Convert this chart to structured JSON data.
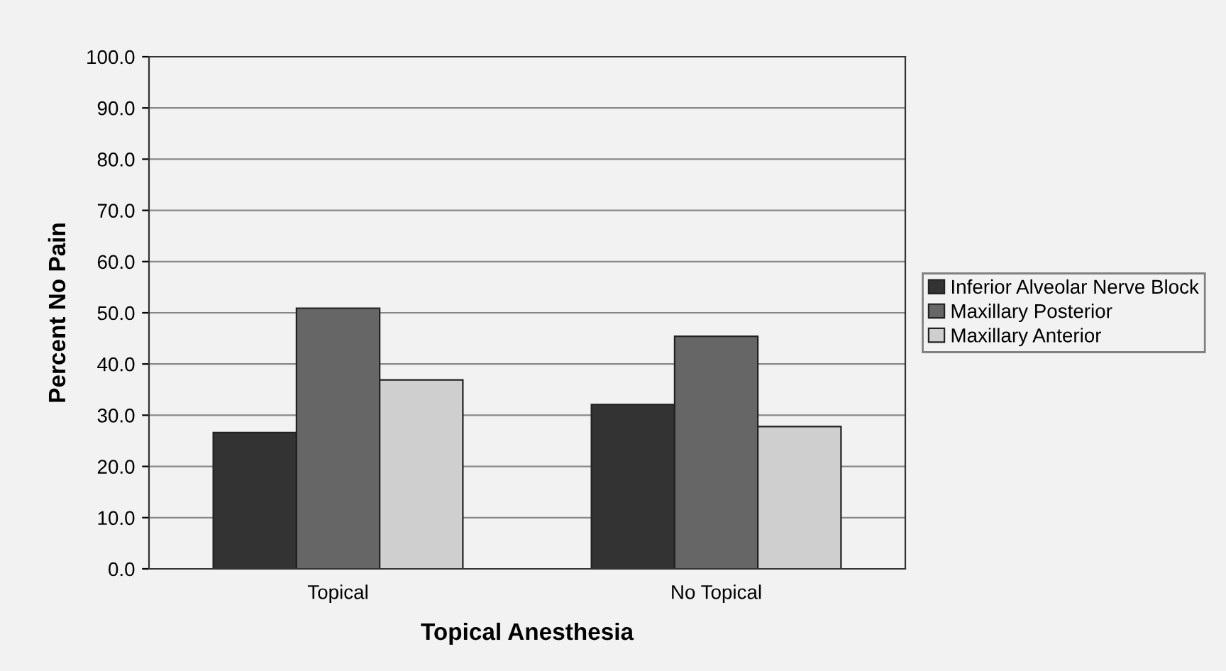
{
  "chart_data": {
    "type": "bar",
    "xlabel": "Topical Anesthesia",
    "ylabel": "Percent No Pain",
    "categories": [
      "Topical",
      "No Topical"
    ],
    "series": [
      {
        "name": "Inferior Alveolar Nerve Block",
        "color": "#333333",
        "values": [
          26.6,
          32.1
        ]
      },
      {
        "name": "Maxillary Posterior",
        "color": "#666666",
        "values": [
          50.9,
          45.4
        ]
      },
      {
        "name": "Maxillary Anterior",
        "color": "#cfcfcf",
        "values": [
          36.9,
          27.8
        ]
      }
    ],
    "ylim": [
      0,
      100
    ],
    "yticks": [
      {
        "value": 0,
        "label": "0.0"
      },
      {
        "value": 10,
        "label": "10.0"
      },
      {
        "value": 20,
        "label": "20.0"
      },
      {
        "value": 30,
        "label": "30.0"
      },
      {
        "value": 40,
        "label": "40.0"
      },
      {
        "value": 50,
        "label": "50.0"
      },
      {
        "value": 60,
        "label": "60.0"
      },
      {
        "value": 70,
        "label": "70.0"
      },
      {
        "value": 80,
        "label": "80.0"
      },
      {
        "value": 90,
        "label": "90.0"
      },
      {
        "value": 100,
        "label": "100.0"
      }
    ],
    "grid": "y",
    "legend": "right"
  }
}
